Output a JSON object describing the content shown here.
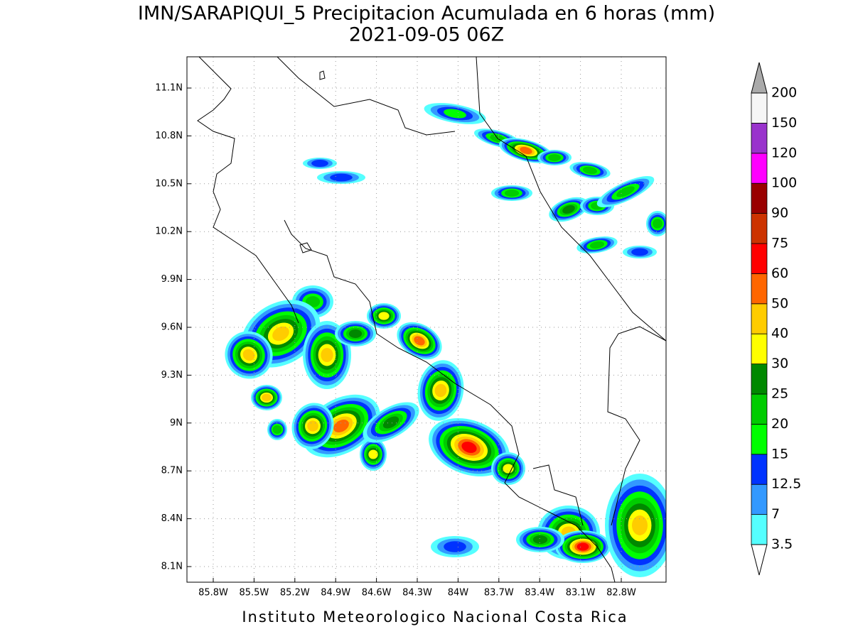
{
  "header": {
    "title": "IMN/SARAPIQUI_5 Precipitacion Acumulada en 6 horas (mm)",
    "subtitle": "2021-09-05 06Z"
  },
  "map": {
    "lat_labels": [
      "11.1N",
      "10.8N",
      "10.5N",
      "10.2N",
      "9.9N",
      "9.6N",
      "9.3N",
      "9N",
      "8.7N",
      "8.4N",
      "8.1N"
    ],
    "lon_labels": [
      "85.8W",
      "85.5W",
      "85.2W",
      "84.9W",
      "84.6W",
      "84.3W",
      "84W",
      "83.7W",
      "83.4W",
      "83.1W",
      "82.8W"
    ]
  },
  "legend": {
    "levels": [
      "200",
      "150",
      "120",
      "100",
      "90",
      "75",
      "60",
      "50",
      "40",
      "30",
      "25",
      "20",
      "15",
      "12.5",
      "7",
      "3.5"
    ]
  },
  "footer": {
    "credit": "Instituto Meteorologico Nacional Costa Rica"
  }
}
